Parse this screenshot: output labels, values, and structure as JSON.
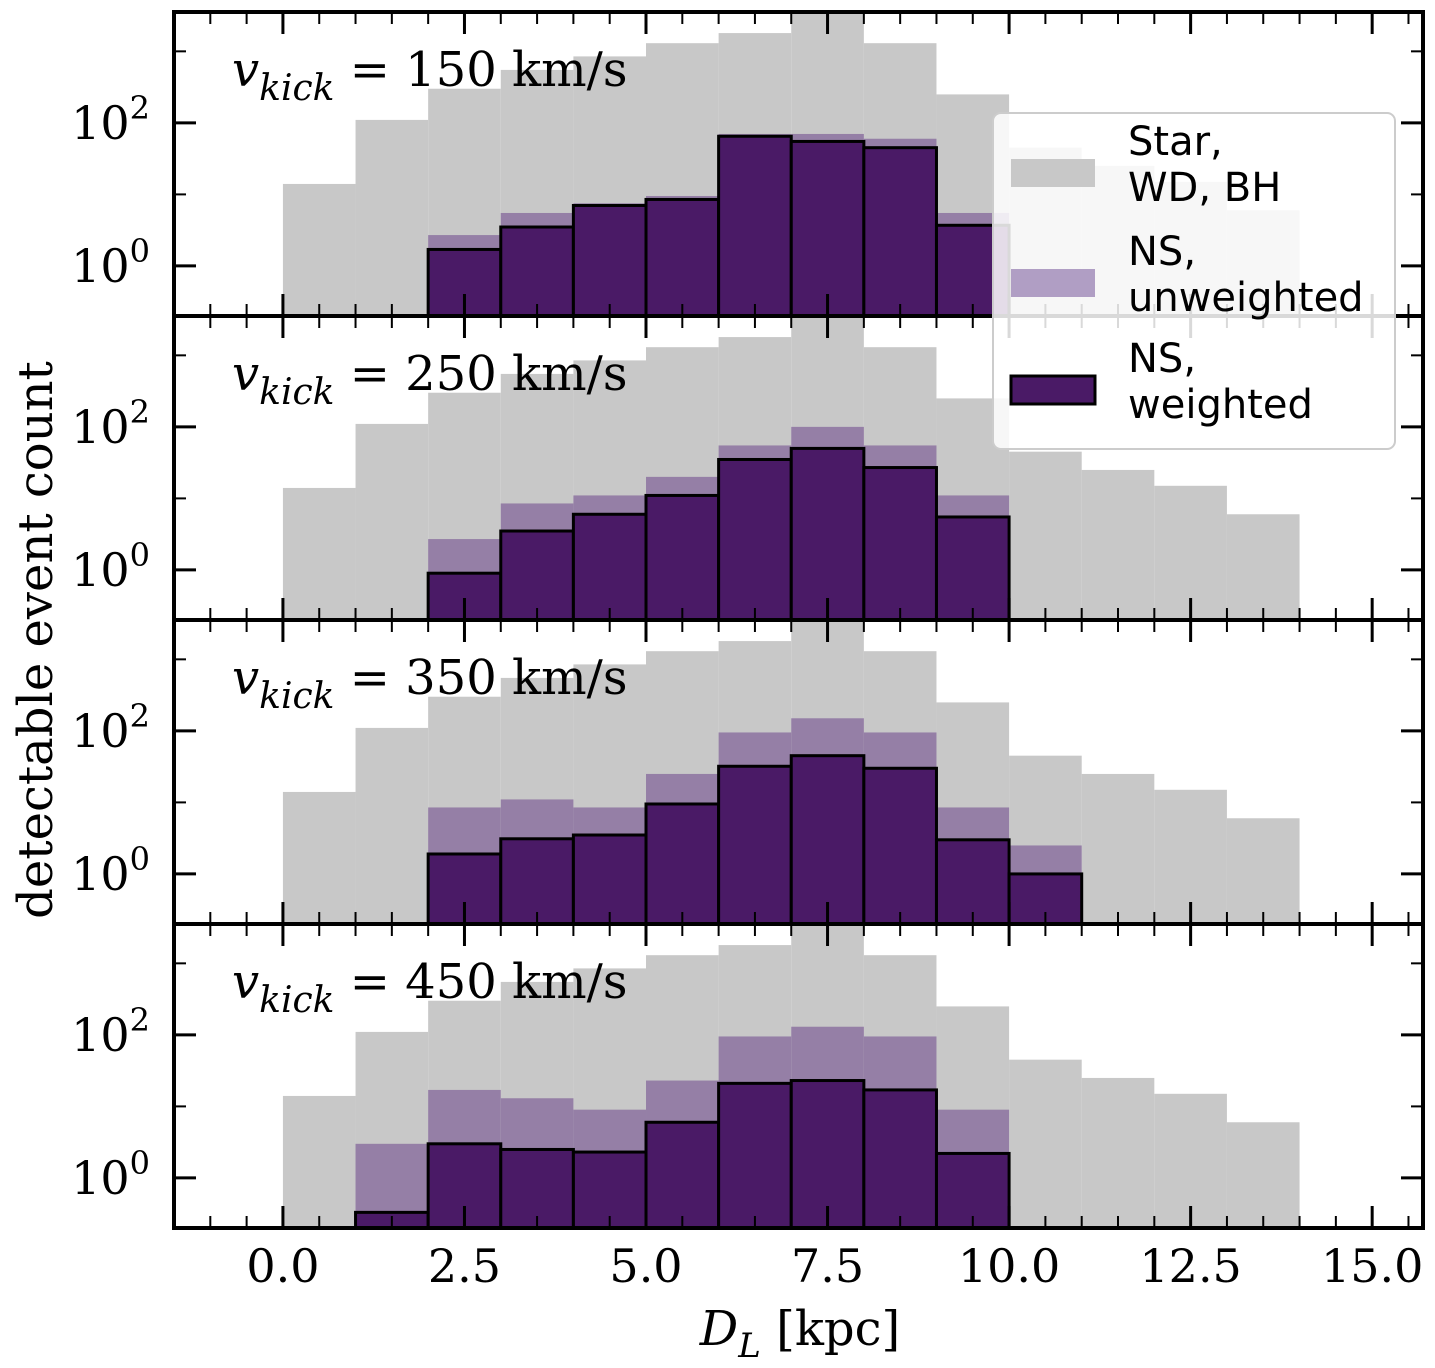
{
  "chart_data": {
    "type": "histogram",
    "xlabel": "D_L [kpc]",
    "xlabel_main": "D",
    "xlabel_sub": "L",
    "xlabel_unit": "[kpc]",
    "ylabel": "detectable event count",
    "xlim": [
      -1.5,
      15.7
    ],
    "ylim_log10": [
      -0.7,
      3.55
    ],
    "xticks": [
      "0.0",
      "2.5",
      "5.0",
      "7.5",
      "10.0",
      "12.5",
      "15.0"
    ],
    "ytick_labels": [
      {
        "base": "10",
        "exp": "0"
      },
      {
        "base": "10",
        "exp": "2"
      }
    ],
    "bin_edges": [
      0,
      1,
      2,
      3,
      4,
      5,
      6,
      7,
      8,
      9,
      10,
      11,
      12,
      13,
      14
    ],
    "legend": {
      "entries": [
        {
          "line1": "Star,",
          "line2": "WD, BH",
          "color": "#c8c8c8"
        },
        {
          "line1": "NS,",
          "line2": "unweighted",
          "color": "#b09ec4"
        },
        {
          "line1": "NS,",
          "line2": "weighted",
          "color": "#4a1a66"
        }
      ]
    },
    "colors": {
      "star": "#c8c8c8",
      "ns_unweighted": "#957fa6",
      "ns_weighted": "#4a1a66",
      "edge": "#000000"
    },
    "panels": [
      {
        "label_v": "v",
        "label_sub": "kick",
        "label_rest": " = 150 km/s",
        "series": [
          {
            "name": "Star, WD, BH",
            "values": [
              14,
              110,
              300,
              550,
              850,
              1300,
              1800,
              4000,
              1300,
              250,
              45,
              25,
              15,
              6
            ]
          },
          {
            "name": "NS, unweighted",
            "values": [
              0,
              0,
              2.7,
              5.5,
              7.5,
              9.5,
              70,
              70,
              60,
              5.5,
              0,
              0,
              0,
              0
            ]
          },
          {
            "name": "NS, weighted",
            "values": [
              0,
              0,
              1.7,
              3.5,
              7.0,
              8.5,
              65,
              55,
              45,
              3.7,
              0,
              0,
              0,
              0
            ]
          }
        ]
      },
      {
        "label_v": "v",
        "label_sub": "kick",
        "label_rest": " = 250 km/s",
        "series": [
          {
            "name": "Star, WD, BH",
            "values": [
              14,
              110,
              300,
              550,
              850,
              1300,
              1800,
              4000,
              1300,
              250,
              45,
              25,
              15,
              6
            ]
          },
          {
            "name": "NS, unweighted",
            "values": [
              0,
              0,
              2.7,
              8.5,
              11,
              20,
              55,
              100,
              55,
              11,
              0,
              0,
              0,
              0
            ]
          },
          {
            "name": "NS, weighted",
            "values": [
              0,
              0,
              0.9,
              3.5,
              6.0,
              11,
              35,
              50,
              27,
              5.5,
              0,
              0,
              0,
              0
            ]
          }
        ]
      },
      {
        "label_v": "v",
        "label_sub": "kick",
        "label_rest": " = 350 km/s",
        "series": [
          {
            "name": "Star, WD, BH",
            "values": [
              14,
              110,
              300,
              550,
              850,
              1300,
              1800,
              4000,
              1300,
              250,
              45,
              25,
              15,
              6
            ]
          },
          {
            "name": "NS, unweighted",
            "values": [
              0,
              0,
              8.5,
              11,
              8.5,
              25,
              95,
              150,
              95,
              8.5,
              2.5,
              0,
              0,
              0
            ]
          },
          {
            "name": "NS, weighted",
            "values": [
              0,
              0,
              1.9,
              3.1,
              3.5,
              9.5,
              32,
              45,
              30,
              3.0,
              1.0,
              0,
              0,
              0
            ]
          }
        ]
      },
      {
        "label_v": "v",
        "label_sub": "kick",
        "label_rest": " = 450 km/s",
        "series": [
          {
            "name": "Star, WD, BH",
            "values": [
              14,
              110,
              300,
              550,
              850,
              1300,
              1800,
              4000,
              1300,
              250,
              45,
              25,
              15,
              6
            ]
          },
          {
            "name": "NS, unweighted",
            "values": [
              0,
              3.0,
              17,
              13,
              9.0,
              23,
              95,
              130,
              95,
              9.0,
              0,
              0,
              0,
              0
            ]
          },
          {
            "name": "NS, weighted",
            "values": [
              0,
              0.33,
              3.0,
              2.5,
              2.3,
              6.0,
              21,
              23,
              17,
              2.2,
              0,
              0,
              0,
              0
            ]
          }
        ]
      }
    ]
  }
}
